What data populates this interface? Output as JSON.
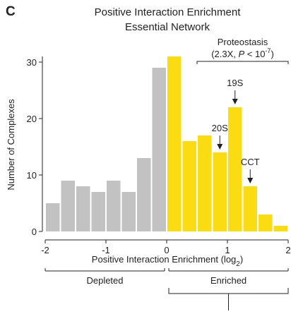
{
  "panel_label": "C",
  "chart_data": {
    "type": "histogram",
    "title": [
      "Positive Interaction Enrichment",
      "Essential Network"
    ],
    "y_label": "Number of Complexes",
    "x_label": {
      "text": "Positive Interaction Enrichment (log",
      "subscript": "2",
      "tail": ")"
    },
    "bins": [
      -2,
      -1.75,
      -1.5,
      -1.25,
      -1,
      -0.75,
      -0.5,
      -0.25,
      0,
      0.25,
      0.5,
      0.75,
      1,
      1.25,
      1.5,
      1.75,
      2
    ],
    "values": [
      5,
      9,
      8,
      7,
      9,
      7,
      13,
      29,
      31,
      16,
      17,
      14,
      22,
      8,
      3,
      1
    ],
    "groups": [
      {
        "name": "Depleted",
        "color": "#c2c2c2",
        "range": [
          -2,
          0
        ]
      },
      {
        "name": "Enriched",
        "color": "#fbdc12",
        "range": [
          0,
          2
        ]
      }
    ],
    "xlim": [
      -2,
      2
    ],
    "xticks": [
      -2,
      -1,
      0,
      1,
      2
    ],
    "ylim": [
      0,
      31
    ],
    "yticks": [
      0,
      10,
      20,
      30
    ],
    "bracket": {
      "title": "Proteostasis",
      "range": [
        0.5,
        2
      ],
      "stat": {
        "pre": "(2.3X, ",
        "italic": "P",
        "mid": " < 10",
        "sup": "-7",
        "tail": ")"
      }
    },
    "annotations": [
      {
        "text": "20S",
        "x": 0.875
      },
      {
        "text": "19S",
        "x": 1.125
      },
      {
        "text": "CCT",
        "x": 1.375
      }
    ]
  }
}
